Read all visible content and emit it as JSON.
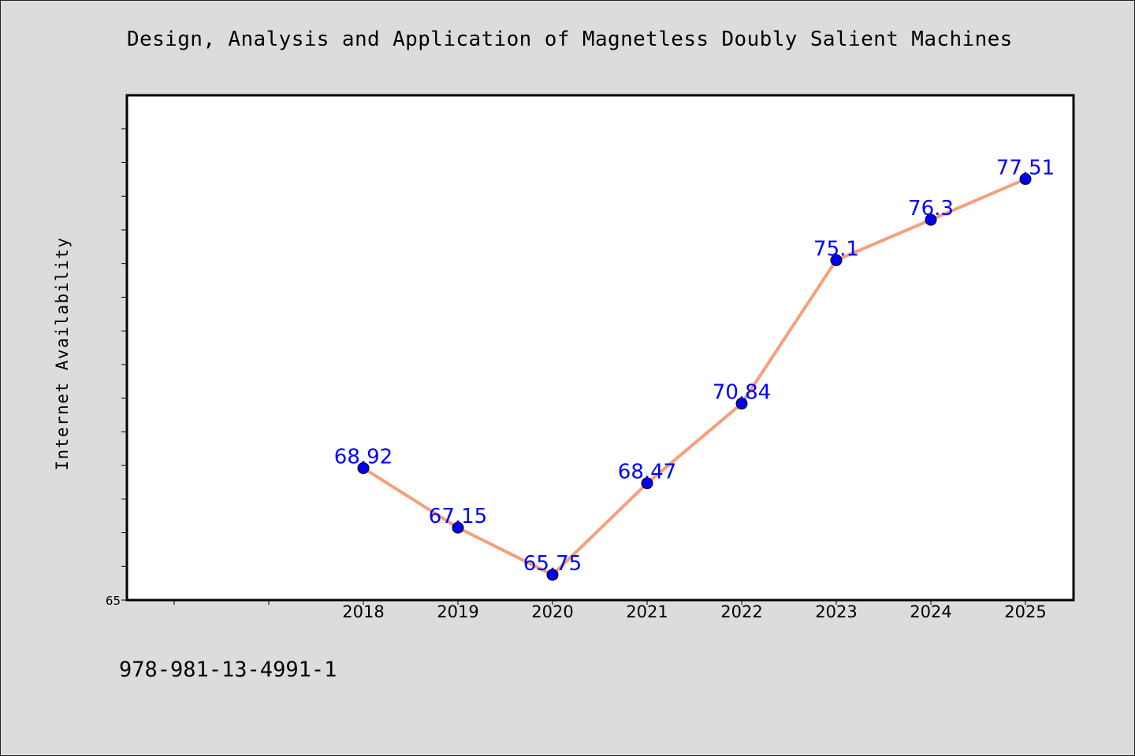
{
  "page": {
    "title": "Design, Analysis and Application of Magnetless Doubly Salient Machines",
    "ylabel": "Internet Availability",
    "isbn": "978-981-13-4991-1"
  },
  "colors": {
    "background": "#dcdcdc",
    "plot_area": "#ffffff",
    "line": "#f4a07a",
    "marker": "#0000ee",
    "data_label": "#0000ff"
  },
  "chart_data": {
    "type": "line",
    "title": "Design, Analysis and Application of Magnetless Doubly Salient Machines",
    "xlabel": "",
    "ylabel": "Internet Availability",
    "categories": [
      "2018",
      "2019",
      "2020",
      "2021",
      "2022",
      "2023",
      "2024",
      "2025"
    ],
    "series": [
      {
        "values": [
          68.92,
          67.15,
          65.75,
          68.47,
          70.84,
          75.1,
          76.3,
          77.51
        ]
      }
    ],
    "data_labels": [
      "68.92",
      "67.15",
      "65.75",
      "68.47",
      "70.84",
      "75.1",
      "76.3",
      "77.51"
    ],
    "y_tick_labels": [
      "65"
    ],
    "ylim": [
      65,
      80
    ],
    "y_minor_step": 1,
    "x_extra_ticks_before": 2,
    "grid": false,
    "legend": "none"
  }
}
